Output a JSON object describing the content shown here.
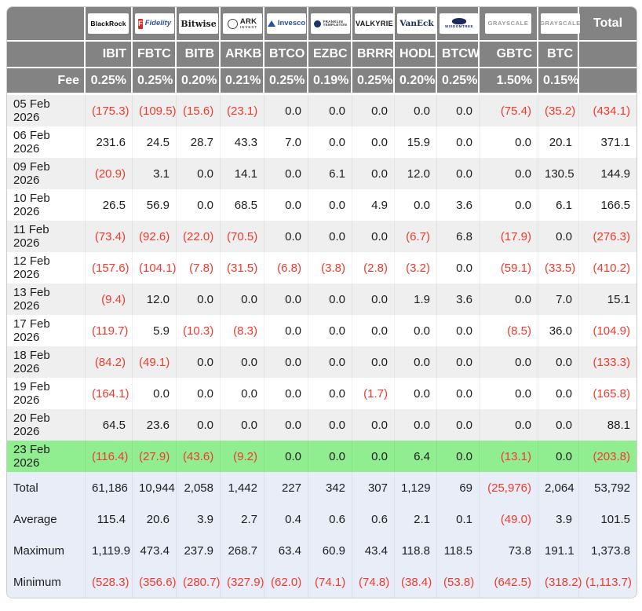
{
  "colors": {
    "header_bg": "#838383",
    "negative": "#ee3b2e",
    "highlight_row": "#90ee90",
    "stripe": "#efefef",
    "summary_bg": "#e9edf8",
    "outer_border": "#cccccc"
  },
  "table": {
    "fee_label": "Fee",
    "total_label": "Total",
    "providers": [
      {
        "name": "BlackRock",
        "ticker": "IBIT",
        "fee": "0.25%",
        "logo": {
          "style": "blackrock",
          "text": "BlackRock"
        }
      },
      {
        "name": "Fidelity",
        "ticker": "FBTC",
        "fee": "0.25%",
        "logo": {
          "style": "fidelity",
          "icon": true,
          "icon_letter": "F",
          "text": "Fidelity"
        }
      },
      {
        "name": "Bitwise",
        "ticker": "BITB",
        "fee": "0.20%",
        "logo": {
          "style": "bitwise",
          "text": "Bitwise"
        }
      },
      {
        "name": "ARK Invest",
        "ticker": "ARKB",
        "fee": "0.21%",
        "logo": {
          "style": "ark",
          "icon": true,
          "text": "ARK",
          "sub": "INVEST"
        }
      },
      {
        "name": "Invesco",
        "ticker": "BTCO",
        "fee": "0.25%",
        "logo": {
          "style": "invesco",
          "icon": true,
          "text": "Invesco"
        }
      },
      {
        "name": "Franklin Templeton",
        "ticker": "EZBC",
        "fee": "0.19%",
        "logo": {
          "style": "franklin",
          "icon": true,
          "text": "FRANKLIN",
          "sub": "TEMPLETON"
        }
      },
      {
        "name": "Valkyrie",
        "ticker": "BRRR",
        "fee": "0.25%",
        "logo": {
          "style": "valkyrie",
          "text": "VALKYRIE"
        }
      },
      {
        "name": "VanEck",
        "ticker": "HODL",
        "fee": "0.20%",
        "logo": {
          "style": "vaneck",
          "text": "VanEck"
        }
      },
      {
        "name": "WisdomTree",
        "ticker": "BTCW",
        "fee": "0.25%",
        "logo": {
          "style": "wisdomtree",
          "icon": true,
          "text": "WISDOMTREE"
        }
      },
      {
        "name": "Grayscale",
        "ticker": "GBTC",
        "fee": "1.50%",
        "logo": {
          "style": "grayscale",
          "text": "GRAYSCALE"
        }
      },
      {
        "name": "Grayscale",
        "ticker": "BTC",
        "fee": "0.15%",
        "logo": {
          "style": "grayscale",
          "text": "GRAYSCALE"
        }
      }
    ]
  },
  "chart_data": {
    "type": "table",
    "columns": [
      "IBIT",
      "FBTC",
      "BITB",
      "ARKB",
      "BTCO",
      "EZBC",
      "BRRR",
      "HODL",
      "BTCW",
      "GBTC",
      "BTC",
      "Total"
    ],
    "fees": [
      "0.25%",
      "0.25%",
      "0.20%",
      "0.21%",
      "0.25%",
      "0.19%",
      "0.25%",
      "0.20%",
      "0.25%",
      "1.50%",
      "0.15%"
    ],
    "rows": [
      {
        "date": "05 Feb 2026",
        "highlight": false,
        "values": [
          "(175.3)",
          "(109.5)",
          "(15.6)",
          "(23.1)",
          "0.0",
          "0.0",
          "0.0",
          "0.0",
          "0.0",
          "(75.4)",
          "(35.2)",
          "(434.1)"
        ]
      },
      {
        "date": "06 Feb 2026",
        "highlight": false,
        "values": [
          "231.6",
          "24.5",
          "28.7",
          "43.3",
          "7.0",
          "0.0",
          "0.0",
          "15.9",
          "0.0",
          "0.0",
          "20.1",
          "371.1"
        ]
      },
      {
        "date": "09 Feb 2026",
        "highlight": false,
        "values": [
          "(20.9)",
          "3.1",
          "0.0",
          "14.1",
          "0.0",
          "6.1",
          "0.0",
          "12.0",
          "0.0",
          "0.0",
          "130.5",
          "144.9"
        ]
      },
      {
        "date": "10 Feb 2026",
        "highlight": false,
        "values": [
          "26.5",
          "56.9",
          "0.0",
          "68.5",
          "0.0",
          "0.0",
          "4.9",
          "0.0",
          "3.6",
          "0.0",
          "6.1",
          "166.5"
        ]
      },
      {
        "date": "11 Feb 2026",
        "highlight": false,
        "values": [
          "(73.4)",
          "(92.6)",
          "(22.0)",
          "(70.5)",
          "0.0",
          "0.0",
          "0.0",
          "(6.7)",
          "6.8",
          "(17.9)",
          "0.0",
          "(276.3)"
        ]
      },
      {
        "date": "12 Feb 2026",
        "highlight": false,
        "values": [
          "(157.6)",
          "(104.1)",
          "(7.8)",
          "(31.5)",
          "(6.8)",
          "(3.8)",
          "(2.8)",
          "(3.2)",
          "0.0",
          "(59.1)",
          "(33.5)",
          "(410.2)"
        ]
      },
      {
        "date": "13 Feb 2026",
        "highlight": false,
        "values": [
          "(9.4)",
          "12.0",
          "0.0",
          "0.0",
          "0.0",
          "0.0",
          "0.0",
          "1.9",
          "3.6",
          "0.0",
          "7.0",
          "15.1"
        ]
      },
      {
        "date": "17 Feb 2026",
        "highlight": false,
        "values": [
          "(119.7)",
          "5.9",
          "(10.3)",
          "(8.3)",
          "0.0",
          "0.0",
          "0.0",
          "0.0",
          "0.0",
          "(8.5)",
          "36.0",
          "(104.9)"
        ]
      },
      {
        "date": "18 Feb 2026",
        "highlight": false,
        "values": [
          "(84.2)",
          "(49.1)",
          "0.0",
          "0.0",
          "0.0",
          "0.0",
          "0.0",
          "0.0",
          "0.0",
          "0.0",
          "0.0",
          "(133.3)"
        ]
      },
      {
        "date": "19 Feb 2026",
        "highlight": false,
        "values": [
          "(164.1)",
          "0.0",
          "0.0",
          "0.0",
          "0.0",
          "0.0",
          "(1.7)",
          "0.0",
          "0.0",
          "0.0",
          "0.0",
          "(165.8)"
        ]
      },
      {
        "date": "20 Feb 2026",
        "highlight": false,
        "values": [
          "64.5",
          "23.6",
          "0.0",
          "0.0",
          "0.0",
          "0.0",
          "0.0",
          "0.0",
          "0.0",
          "0.0",
          "0.0",
          "88.1"
        ]
      },
      {
        "date": "23 Feb 2026",
        "highlight": true,
        "values": [
          "(116.4)",
          "(27.9)",
          "(43.6)",
          "(9.2)",
          "0.0",
          "0.0",
          "0.0",
          "6.4",
          "0.0",
          "(13.1)",
          "0.0",
          "(203.8)"
        ]
      }
    ],
    "summary_rows": [
      {
        "label": "Total",
        "values": [
          "61,186",
          "10,944",
          "2,058",
          "1,442",
          "227",
          "342",
          "307",
          "1,129",
          "69",
          "(25,976)",
          "2,064",
          "53,792"
        ]
      },
      {
        "label": "Average",
        "values": [
          "115.4",
          "20.6",
          "3.9",
          "2.7",
          "0.4",
          "0.6",
          "0.6",
          "2.1",
          "0.1",
          "(49.0)",
          "3.9",
          "101.5"
        ]
      },
      {
        "label": "Maximum",
        "values": [
          "1,119.9",
          "473.4",
          "237.9",
          "268.7",
          "63.4",
          "60.9",
          "43.4",
          "118.8",
          "118.5",
          "73.8",
          "191.1",
          "1,373.8"
        ]
      },
      {
        "label": "Minimum",
        "values": [
          "(528.3)",
          "(356.6)",
          "(280.7)",
          "(327.9)",
          "(62.0)",
          "(74.1)",
          "(74.8)",
          "(38.4)",
          "(53.8)",
          "(642.5)",
          "(318.2)",
          "(1,113.7)"
        ]
      }
    ]
  }
}
